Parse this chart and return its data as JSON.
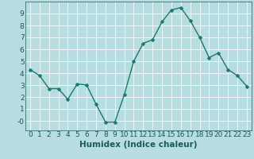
{
  "x": [
    0,
    1,
    2,
    3,
    4,
    5,
    6,
    7,
    8,
    9,
    10,
    11,
    12,
    13,
    14,
    15,
    16,
    17,
    18,
    19,
    20,
    21,
    22,
    23
  ],
  "y": [
    4.3,
    3.8,
    2.7,
    2.7,
    1.8,
    3.1,
    3.0,
    1.4,
    -0.1,
    -0.1,
    2.2,
    5.0,
    6.5,
    6.8,
    8.3,
    9.3,
    9.5,
    8.4,
    7.0,
    5.3,
    5.7,
    4.3,
    3.8,
    2.9
  ],
  "line_color": "#1a7a6e",
  "marker_color": "#1a7a6e",
  "bg_color": "#b8dde0",
  "grid_color": "#e8f8f8",
  "xlabel": "Humidex (Indice chaleur)",
  "xlim": [
    -0.5,
    23.5
  ],
  "ylim": [
    -0.8,
    10.0
  ],
  "yticks": [
    0,
    1,
    2,
    3,
    4,
    5,
    6,
    7,
    8,
    9
  ],
  "ytick_labels": [
    "-0",
    "1",
    "2",
    "3",
    "4",
    "5",
    "6",
    "7",
    "8",
    "9"
  ],
  "xticks": [
    0,
    1,
    2,
    3,
    4,
    5,
    6,
    7,
    8,
    9,
    10,
    11,
    12,
    13,
    14,
    15,
    16,
    17,
    18,
    19,
    20,
    21,
    22,
    23
  ],
  "xlabel_fontsize": 7.5,
  "tick_fontsize": 6.5,
  "line_width": 1.0,
  "marker_size": 2.5
}
